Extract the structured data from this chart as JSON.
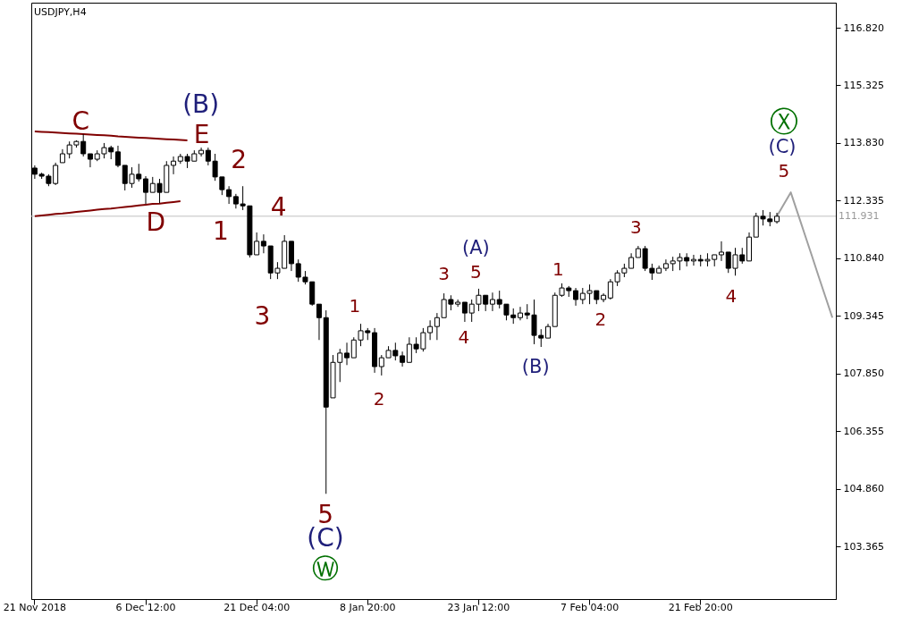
{
  "chart_data": {
    "type": "candlestick",
    "title": "USDJPY,H4",
    "categories": [
      "21 Nov 2018",
      null,
      null,
      null,
      null,
      null,
      null,
      null,
      null,
      null,
      null,
      null,
      null,
      null,
      null,
      null,
      "6 Dec 12:00",
      null,
      null,
      null,
      null,
      null,
      null,
      null,
      null,
      null,
      null,
      null,
      null,
      null,
      null,
      null,
      "21 Dec 04:00",
      null,
      null,
      null,
      null,
      null,
      null,
      null,
      null,
      null,
      null,
      null,
      null,
      null,
      null,
      null,
      "8 Jan 20:00",
      null,
      null,
      null,
      null,
      null,
      null,
      null,
      null,
      null,
      null,
      null,
      null,
      null,
      null,
      null,
      "23 Jan 12:00",
      null,
      null,
      null,
      null,
      null,
      null,
      null,
      null,
      null,
      null,
      null,
      null,
      null,
      null,
      null,
      "7 Feb 04:00",
      null,
      null,
      null,
      null,
      null,
      null,
      null,
      null,
      null,
      null,
      null,
      null,
      null,
      null,
      null,
      "21 Feb 20:00",
      null,
      null,
      null,
      null,
      null,
      null,
      null,
      null,
      null,
      null,
      null,
      null,
      null,
      null,
      null,
      null,
      null,
      null,
      null
    ],
    "ohlc": [
      [
        113.18,
        113.25,
        112.9,
        113.02
      ],
      [
        113.02,
        113.06,
        112.9,
        112.97
      ],
      [
        112.97,
        113.02,
        112.71,
        112.78
      ],
      [
        112.78,
        113.32,
        112.74,
        113.25
      ],
      [
        113.32,
        113.67,
        113.32,
        113.55
      ],
      [
        113.55,
        113.87,
        113.43,
        113.78
      ],
      [
        113.78,
        113.9,
        113.71,
        113.87
      ],
      [
        113.87,
        114.06,
        113.48,
        113.55
      ],
      [
        113.55,
        113.55,
        113.2,
        113.41
      ],
      [
        113.41,
        113.64,
        113.36,
        113.55
      ],
      [
        113.55,
        113.83,
        113.43,
        113.71
      ],
      [
        113.71,
        113.76,
        113.41,
        113.6
      ],
      [
        113.6,
        113.76,
        113.2,
        113.25
      ],
      [
        113.25,
        113.25,
        112.6,
        112.78
      ],
      [
        112.78,
        113.2,
        112.67,
        113.02
      ],
      [
        113.02,
        113.29,
        112.83,
        112.9
      ],
      [
        112.9,
        112.97,
        112.25,
        112.55
      ],
      [
        112.55,
        112.95,
        112.55,
        112.78
      ],
      [
        112.78,
        112.9,
        112.27,
        112.55
      ],
      [
        112.55,
        113.36,
        112.55,
        113.25
      ],
      [
        113.25,
        113.48,
        113.02,
        113.36
      ],
      [
        113.36,
        113.55,
        113.29,
        113.48
      ],
      [
        113.48,
        113.55,
        113.18,
        113.36
      ],
      [
        113.36,
        113.64,
        113.36,
        113.55
      ],
      [
        113.55,
        113.71,
        113.48,
        113.64
      ],
      [
        113.64,
        113.71,
        113.25,
        113.36
      ],
      [
        113.36,
        113.55,
        112.85,
        112.95
      ],
      [
        112.95,
        112.95,
        112.48,
        112.62
      ],
      [
        112.62,
        112.71,
        112.25,
        112.44
      ],
      [
        112.44,
        112.51,
        112.13,
        112.25
      ],
      [
        112.25,
        112.71,
        112.09,
        112.2
      ],
      [
        112.2,
        112.2,
        110.86,
        110.93
      ],
      [
        110.93,
        111.51,
        110.93,
        111.28
      ],
      [
        111.28,
        111.46,
        110.97,
        111.16
      ],
      [
        111.16,
        111.16,
        110.3,
        110.46
      ],
      [
        110.46,
        110.74,
        110.3,
        110.58
      ],
      [
        110.58,
        111.44,
        110.58,
        111.28
      ],
      [
        111.28,
        111.28,
        110.51,
        110.7
      ],
      [
        110.7,
        110.81,
        110.23,
        110.35
      ],
      [
        110.35,
        110.51,
        110.16,
        110.23
      ],
      [
        110.23,
        110.23,
        109.61,
        109.65
      ],
      [
        109.65,
        109.65,
        108.72,
        109.3
      ],
      [
        109.3,
        109.49,
        104.73,
        106.98
      ],
      [
        107.22,
        108.33,
        107.22,
        108.14
      ],
      [
        108.14,
        108.49,
        107.63,
        108.38
      ],
      [
        108.38,
        108.65,
        108.07,
        108.26
      ],
      [
        108.26,
        108.79,
        108.26,
        108.72
      ],
      [
        108.72,
        109.14,
        108.56,
        108.96
      ],
      [
        108.96,
        109.03,
        108.72,
        108.91
      ],
      [
        108.91,
        109.03,
        107.87,
        108.03
      ],
      [
        108.03,
        108.33,
        107.8,
        108.26
      ],
      [
        108.26,
        108.56,
        108.26,
        108.45
      ],
      [
        108.45,
        108.65,
        108.19,
        108.31
      ],
      [
        108.31,
        108.42,
        108.03,
        108.14
      ],
      [
        108.14,
        108.79,
        108.14,
        108.61
      ],
      [
        108.61,
        108.79,
        108.38,
        108.49
      ],
      [
        108.49,
        109.03,
        108.42,
        108.91
      ],
      [
        108.91,
        109.23,
        108.72,
        109.07
      ],
      [
        109.07,
        109.42,
        108.72,
        109.3
      ],
      [
        109.3,
        109.93,
        109.3,
        109.77
      ],
      [
        109.77,
        109.88,
        109.49,
        109.65
      ],
      [
        109.65,
        109.77,
        109.58,
        109.7
      ],
      [
        109.7,
        109.7,
        109.19,
        109.42
      ],
      [
        109.42,
        109.77,
        109.19,
        109.65
      ],
      [
        109.65,
        110.05,
        109.47,
        109.88
      ],
      [
        109.88,
        109.88,
        109.47,
        109.65
      ],
      [
        109.65,
        109.95,
        109.47,
        109.77
      ],
      [
        109.77,
        110.0,
        109.54,
        109.65
      ],
      [
        109.65,
        109.65,
        109.23,
        109.37
      ],
      [
        109.37,
        109.54,
        109.14,
        109.3
      ],
      [
        109.3,
        109.58,
        109.23,
        109.42
      ],
      [
        109.42,
        109.65,
        109.26,
        109.37
      ],
      [
        109.37,
        109.77,
        108.61,
        108.84
      ],
      [
        108.84,
        109.0,
        108.54,
        108.77
      ],
      [
        108.77,
        109.14,
        108.77,
        109.07
      ],
      [
        109.07,
        109.95,
        109.07,
        109.88
      ],
      [
        109.88,
        110.19,
        109.84,
        110.07
      ],
      [
        110.07,
        110.12,
        109.84,
        110.0
      ],
      [
        110.0,
        110.07,
        109.61,
        109.77
      ],
      [
        109.77,
        110.07,
        109.65,
        109.93
      ],
      [
        109.93,
        110.16,
        109.65,
        110.0
      ],
      [
        110.0,
        110.0,
        109.65,
        109.77
      ],
      [
        109.77,
        109.93,
        109.7,
        109.88
      ],
      [
        109.81,
        110.3,
        109.77,
        110.23
      ],
      [
        110.23,
        110.53,
        110.12,
        110.46
      ],
      [
        110.46,
        110.7,
        110.35,
        110.58
      ],
      [
        110.58,
        110.97,
        110.58,
        110.86
      ],
      [
        110.86,
        111.16,
        110.86,
        111.09
      ],
      [
        111.09,
        111.16,
        110.51,
        110.58
      ],
      [
        110.58,
        110.7,
        110.28,
        110.46
      ],
      [
        110.46,
        110.65,
        110.46,
        110.58
      ],
      [
        110.58,
        110.81,
        110.51,
        110.7
      ],
      [
        110.7,
        110.88,
        110.51,
        110.77
      ],
      [
        110.77,
        110.97,
        110.53,
        110.86
      ],
      [
        110.86,
        110.97,
        110.63,
        110.77
      ],
      [
        110.77,
        110.93,
        110.65,
        110.81
      ],
      [
        110.81,
        110.93,
        110.63,
        110.77
      ],
      [
        110.77,
        110.97,
        110.63,
        110.81
      ],
      [
        110.81,
        110.93,
        110.63,
        110.93
      ],
      [
        110.93,
        111.28,
        110.77,
        111.0
      ],
      [
        111.0,
        111.0,
        110.46,
        110.58
      ],
      [
        110.58,
        111.11,
        110.39,
        110.93
      ],
      [
        110.93,
        111.11,
        110.7,
        110.77
      ],
      [
        110.77,
        111.51,
        110.77,
        111.39
      ],
      [
        111.39,
        112.02,
        111.39,
        111.93
      ],
      [
        111.93,
        112.09,
        111.69,
        111.86
      ],
      [
        111.86,
        112.04,
        111.67,
        111.79
      ],
      [
        111.79,
        112.02,
        111.74,
        111.93
      ],
      null,
      null,
      null,
      null,
      null,
      null,
      null,
      null
    ],
    "color": "#000000",
    "series": [
      {
        "type": "line",
        "color": "#800000",
        "values": [
          114.13,
          114.12,
          114.11,
          114.1,
          114.09,
          114.08,
          114.07,
          114.06,
          114.05,
          114.04,
          114.03,
          114.02,
          114.0,
          113.99,
          113.98,
          113.97,
          113.96,
          113.95,
          113.94,
          113.93,
          113.92,
          113.91,
          113.9,
          null,
          null,
          null,
          null,
          null,
          null,
          null,
          null,
          null,
          null,
          null,
          null,
          null,
          null,
          null,
          null,
          null,
          null,
          null,
          null,
          null,
          null,
          null,
          null,
          null,
          null,
          null,
          null,
          null,
          null,
          null,
          null,
          null,
          null,
          null,
          null,
          null,
          null,
          null,
          null,
          null,
          null,
          null,
          null,
          null,
          null,
          null,
          null,
          null,
          null,
          null,
          null,
          null,
          null,
          null,
          null,
          null,
          null,
          null,
          null,
          null,
          null,
          null,
          null,
          null,
          null,
          null,
          null,
          null,
          null,
          null,
          null,
          null,
          null,
          null,
          null,
          null,
          null,
          null,
          null,
          null,
          null,
          null,
          null,
          null,
          null,
          null,
          null,
          null,
          null,
          null,
          null,
          null
        ]
      },
      {
        "type": "line",
        "color": "#800000",
        "values": [
          111.93,
          111.95,
          111.97,
          111.99,
          112.0,
          112.02,
          112.04,
          112.06,
          112.08,
          112.1,
          112.12,
          112.13,
          112.15,
          112.17,
          112.19,
          112.21,
          112.23,
          112.25,
          112.26,
          112.28,
          112.3,
          112.32,
          null,
          null,
          null,
          null,
          null,
          null,
          null,
          null,
          null,
          null,
          null,
          null,
          null,
          null,
          null,
          null,
          null,
          null,
          null,
          null,
          null,
          null,
          null,
          null,
          null,
          null,
          null,
          null,
          null,
          null,
          null,
          null,
          null,
          null,
          null,
          null,
          null,
          null,
          null,
          null,
          null,
          null,
          null,
          null,
          null,
          null,
          null,
          null,
          null,
          null,
          null,
          null,
          null,
          null,
          null,
          null,
          null,
          null,
          null,
          null,
          null,
          null,
          null,
          null,
          null,
          null,
          null,
          null,
          null,
          null,
          null,
          null,
          null,
          null,
          null,
          null,
          null,
          null,
          null,
          null,
          null,
          null,
          null,
          null,
          null,
          null,
          null,
          null,
          null,
          null,
          null,
          null,
          null,
          null
        ]
      },
      {
        "type": "line",
        "color": "#a0a0a0",
        "values": [
          null,
          null,
          null,
          null,
          null,
          null,
          null,
          null,
          null,
          null,
          null,
          null,
          null,
          null,
          null,
          null,
          null,
          null,
          null,
          null,
          null,
          null,
          null,
          null,
          null,
          null,
          null,
          null,
          null,
          null,
          null,
          null,
          null,
          null,
          null,
          null,
          null,
          null,
          null,
          null,
          null,
          null,
          null,
          null,
          null,
          null,
          null,
          null,
          null,
          null,
          null,
          null,
          null,
          null,
          null,
          null,
          null,
          null,
          null,
          null,
          null,
          null,
          null,
          null,
          null,
          null,
          null,
          null,
          null,
          null,
          null,
          null,
          null,
          null,
          null,
          null,
          null,
          null,
          null,
          null,
          null,
          null,
          null,
          null,
          null,
          null,
          null,
          null,
          null,
          null,
          null,
          null,
          null,
          null,
          null,
          null,
          null,
          null,
          null,
          null,
          null,
          null,
          null,
          null,
          null,
          null,
          null,
          111.93,
          112.24,
          112.55,
          112.01,
          111.47,
          110.93,
          110.38,
          109.84,
          109.3
        ]
      }
    ],
    "ylim": [
      102.0,
      117.47
    ],
    "yticks": [
      {
        "value": 103.365,
        "label": "103.365"
      },
      {
        "value": 104.86,
        "label": "104.860"
      },
      {
        "value": 106.355,
        "label": "106.355"
      },
      {
        "value": 107.85,
        "label": "107.850"
      },
      {
        "value": 109.345,
        "label": "109.345"
      },
      {
        "value": 110.84,
        "label": "110.840"
      },
      {
        "value": 112.335,
        "label": "112.335"
      },
      {
        "value": 113.83,
        "label": "113.830"
      },
      {
        "value": 115.325,
        "label": "115.325"
      },
      {
        "value": 116.82,
        "label": "116.820"
      }
    ],
    "ref_lines": [
      {
        "axis": "y",
        "value": 111.931,
        "label": "111.931",
        "color": "#c0c0c0"
      }
    ],
    "grid": false,
    "annotations": [
      "C",
      "D",
      "E",
      "1",
      "2",
      "3",
      "4",
      "5",
      "(B)",
      "(C)",
      "Ⓦ",
      "1",
      "2",
      "3",
      "4",
      "5",
      "(A)",
      "(B)",
      "1",
      "2",
      "3",
      "4",
      "5",
      "(C)",
      "Ⓧ"
    ]
  }
}
